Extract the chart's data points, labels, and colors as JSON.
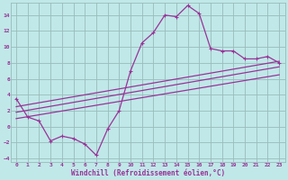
{
  "xlabel": "Windchill (Refroidissement éolien,°C)",
  "bg_color": "#c0e8e8",
  "grid_color": "#99bbbb",
  "line_color": "#993399",
  "xlim": [
    -0.5,
    23.5
  ],
  "ylim": [
    -4.5,
    15.5
  ],
  "yticks": [
    -4,
    -2,
    0,
    2,
    4,
    6,
    8,
    10,
    12,
    14
  ],
  "xticks": [
    0,
    1,
    2,
    3,
    4,
    5,
    6,
    7,
    8,
    9,
    10,
    11,
    12,
    13,
    14,
    15,
    16,
    17,
    18,
    19,
    20,
    21,
    22,
    23
  ],
  "main_x": [
    0,
    1,
    2,
    3,
    4,
    5,
    6,
    7,
    8,
    9,
    10,
    11,
    12,
    13,
    14,
    15,
    16,
    17,
    18,
    19,
    20,
    21,
    22,
    23
  ],
  "main_y": [
    3.5,
    1.2,
    0.7,
    -1.8,
    -1.2,
    -1.5,
    -2.2,
    -3.6,
    -0.3,
    2.0,
    7.0,
    10.5,
    11.8,
    14.0,
    13.8,
    15.2,
    14.2,
    9.8,
    9.5,
    9.5,
    8.5,
    8.5,
    8.8,
    8.0
  ],
  "trend_lines": [
    {
      "x": [
        0,
        23
      ],
      "y": [
        2.5,
        8.2
      ]
    },
    {
      "x": [
        0,
        23
      ],
      "y": [
        1.8,
        7.5
      ]
    },
    {
      "x": [
        0,
        23
      ],
      "y": [
        1.0,
        6.5
      ]
    }
  ]
}
